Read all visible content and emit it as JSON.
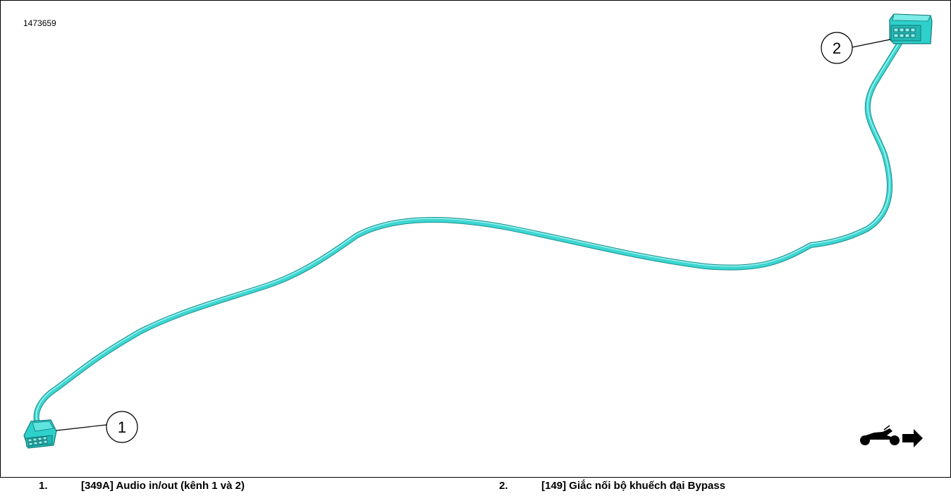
{
  "figure": {
    "id": "1473659"
  },
  "callouts": [
    {
      "number": "1",
      "label": "[349A] Audio in/out (kênh 1 và 2)"
    },
    {
      "number": "2",
      "label": "[149] Giắc nối bộ khuếch đại Bypass"
    }
  ],
  "colors": {
    "harness": "#3cd6d2",
    "harness_shadow": "#1a8f8c",
    "connector": "#2fd0cc",
    "border": "#000000"
  },
  "icons": {
    "orientation": "motorcycle-forward-arrow-icon"
  }
}
